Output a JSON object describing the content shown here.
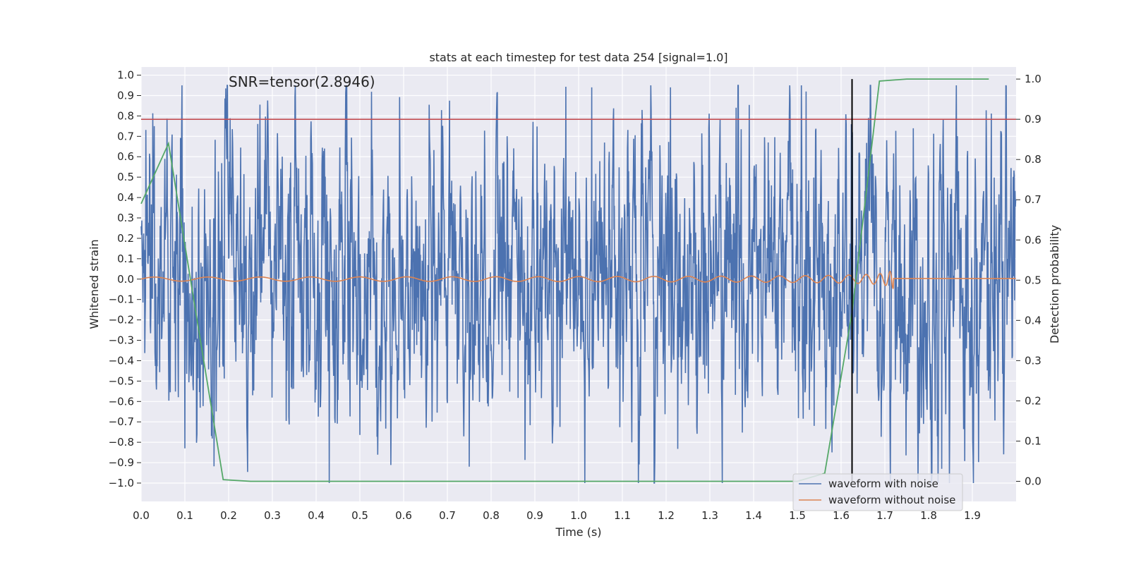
{
  "chart_data": {
    "type": "line",
    "title": "stats at each timestep for test data 254 [signal=1.0]",
    "xlabel": "Time (s)",
    "ylabel_left": "Whitened strain",
    "ylabel_right": "Detection probability",
    "annotation": "SNR=tensor(2.8946)",
    "xlim": [
      0.0,
      2.0
    ],
    "ylim_left": [
      -1.09,
      1.04
    ],
    "ylim_right": [
      -0.05,
      1.03
    ],
    "x_ticks": [
      "0.0",
      "0.1",
      "0.2",
      "0.3",
      "0.4",
      "0.5",
      "0.6",
      "0.7",
      "0.8",
      "0.9",
      "1.0",
      "1.1",
      "1.2",
      "1.3",
      "1.4",
      "1.5",
      "1.6",
      "1.7",
      "1.8",
      "1.9"
    ],
    "y_ticks_left": [
      "1.0",
      "0.9",
      "0.8",
      "0.7",
      "0.6",
      "0.5",
      "0.4",
      "0.3",
      "0.2",
      "0.1",
      "0.0",
      "-0.1",
      "-0.2",
      "-0.3",
      "-0.4",
      "-0.5",
      "-0.6",
      "-0.7",
      "-0.8",
      "-0.9",
      "-1.0"
    ],
    "y_ticks_right": [
      "1.0",
      "0.9",
      "0.8",
      "0.7",
      "0.6",
      "0.5",
      "0.4",
      "0.3",
      "0.2",
      "0.1",
      "0.0"
    ],
    "grid": true,
    "legend_position": "lower-right",
    "colors": {
      "noisy": "#4c72b0",
      "clean": "#dd8452",
      "probability": "#55a868",
      "threshold": "#c44e52",
      "marker": "#000000",
      "background": "#eaeaf2"
    },
    "series": [
      {
        "name": "waveform with noise",
        "axis": "left",
        "summary": "dense whitened noise, roughly between -1.0 and 0.95",
        "noise_amplitude": 0.38,
        "extremes": [
          {
            "x": 0.03,
            "y": 0.75
          },
          {
            "x": 0.1,
            "y": -0.83
          },
          {
            "x": 0.43,
            "y": -1.0
          },
          {
            "x": 0.75,
            "y": -0.92
          },
          {
            "x": 1.03,
            "y": 0.94
          },
          {
            "x": 1.21,
            "y": 0.94
          },
          {
            "x": 1.36,
            "y": 0.84
          },
          {
            "x": 1.52,
            "y": 0.92
          },
          {
            "x": 1.83,
            "y": -0.93
          }
        ]
      },
      {
        "name": "waveform without noise",
        "axis": "left",
        "summary": "chirp signal growing in amplitude and frequency, merging near 1.72 s then flat",
        "start_amplitude": 0.01,
        "peak_amplitude": 0.14,
        "merger_time": 1.72,
        "points_note": "chirp"
      },
      {
        "axis": "right",
        "x": [
          0.0,
          0.0625,
          0.125,
          0.1875,
          0.25,
          0.5,
          1.0,
          1.5,
          1.5625,
          1.625,
          1.6875,
          1.75,
          1.8125,
          1.875,
          1.9375
        ],
        "y": [
          0.69,
          0.84,
          0.42,
          0.004,
          0.0,
          0.0,
          0.0,
          0.0,
          0.02,
          0.42,
          0.995,
          1.0,
          1.0,
          1.0,
          1.0
        ]
      }
    ],
    "threshold_line": {
      "axis": "right",
      "y": 0.9
    },
    "marker_line": {
      "x": 1.625,
      "y_top": 1.0,
      "y_bottom": 0.0
    }
  }
}
